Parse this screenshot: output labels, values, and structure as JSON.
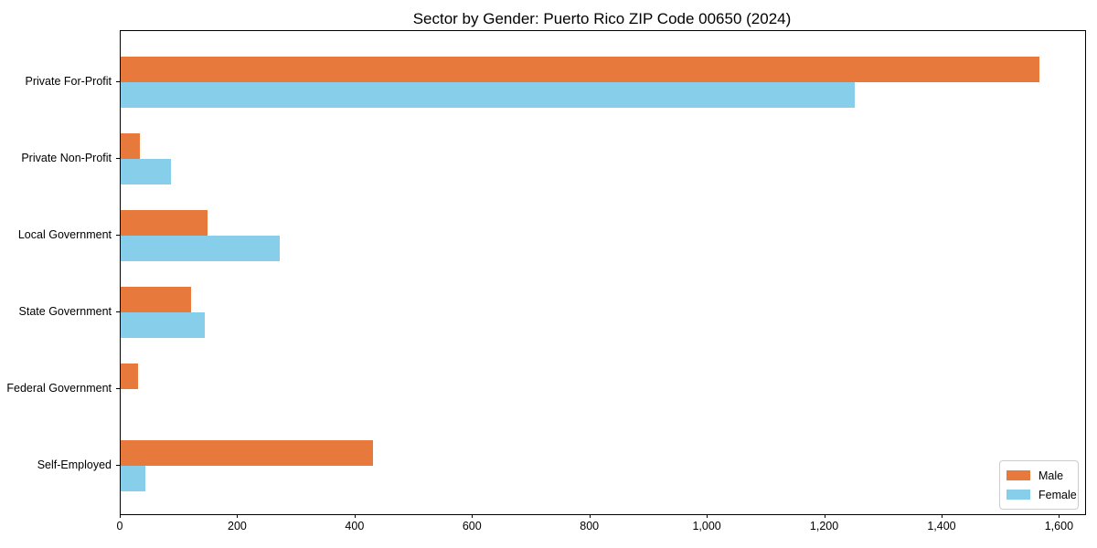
{
  "chart_data": {
    "type": "bar",
    "orientation": "horizontal",
    "title": "Sector by Gender: Puerto Rico ZIP Code 00650 (2024)",
    "categories": [
      "Private For-Profit",
      "Private Non-Profit",
      "Local Government",
      "State Government",
      "Federal Government",
      "Self-Employed"
    ],
    "series": [
      {
        "name": "Male",
        "color": "#e8793d",
        "values": [
          1565,
          33,
          148,
          120,
          30,
          430
        ]
      },
      {
        "name": "Female",
        "color": "#87ceeb",
        "values": [
          1251,
          85,
          271,
          143,
          0,
          42
        ]
      }
    ],
    "xlabel": "",
    "ylabel": "",
    "xlim": [
      0,
      1643
    ],
    "xticks": [
      0,
      200,
      400,
      600,
      800,
      1000,
      1200,
      1400,
      1600
    ],
    "xtick_labels": [
      "0",
      "200",
      "400",
      "600",
      "800",
      "1,000",
      "1,200",
      "1,400",
      "1,600"
    ],
    "grid": false,
    "legend_position": "lower right",
    "axis_color": "#000000"
  }
}
